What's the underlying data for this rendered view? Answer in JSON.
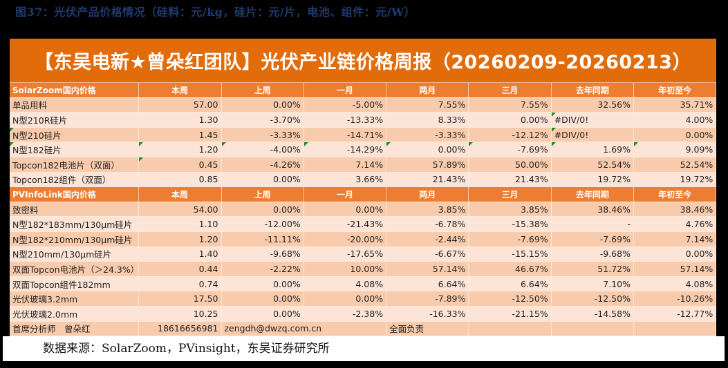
{
  "caption": "图37：光伏产品价格情况（硅料：元/kg，硅片：元/片，电池、组件：元/W）",
  "banner": "【东吴电新★曾朵红团队】光伏产业链价格周报（20260209-20260213）",
  "columns": [
    "本周",
    "上周",
    "一月",
    "两月",
    "三月",
    "去年同期",
    "年初至今"
  ],
  "sections": [
    {
      "title": "SolarZoom国内价格",
      "rows": [
        {
          "name": "单品用料",
          "values": [
            "57.00",
            "0.00%",
            "-5.00%",
            "7.55%",
            "7.55%",
            "32.56%",
            "35.71%"
          ],
          "flags": []
        },
        {
          "name": "N型210R硅片",
          "values": [
            "1.30",
            "-3.70%",
            "-13.33%",
            "8.33%",
            "0.00%",
            "#DIV/0!",
            "4.00%"
          ],
          "flags": [
            6
          ]
        },
        {
          "name": "N型210硅片",
          "values": [
            "1.45",
            "-3.33%",
            "-14.71%",
            "-3.33%",
            "-12.12%",
            "#DIV/0!",
            "0.00%"
          ],
          "flags": [
            0,
            6
          ]
        },
        {
          "name": "N型182硅片",
          "values": [
            "1.20",
            "-4.00%",
            "-14.29%",
            "0.00%",
            "-7.69%",
            "1.69%",
            "9.09%"
          ],
          "flags": [
            0,
            1,
            2,
            3,
            4,
            5,
            6,
            7
          ]
        },
        {
          "name": "Topcon182电池片（双面）",
          "values": [
            "0.45",
            "-4.26%",
            "7.14%",
            "57.89%",
            "50.00%",
            "52.54%",
            "52.54%"
          ],
          "flags": [
            1
          ]
        },
        {
          "name": "Topcon182组件（双面）",
          "values": [
            "0.85",
            "0.00%",
            "3.66%",
            "21.43%",
            "21.43%",
            "19.72%",
            "19.72%"
          ],
          "flags": []
        }
      ]
    },
    {
      "title": "PVInfoLink国内价格",
      "rows": [
        {
          "name": "致密料",
          "values": [
            "54.00",
            "0.00%",
            "0.00%",
            "3.85%",
            "3.85%",
            "38.46%",
            "38.46%"
          ],
          "flags": []
        },
        {
          "name": "N型182*183mm/130μm硅片",
          "values": [
            "1.10",
            "-12.00%",
            "-21.43%",
            "-6.78%",
            "-15.38%",
            "-",
            "4.76%"
          ],
          "flags": []
        },
        {
          "name": "N型182*210mm/130μm硅片",
          "values": [
            "1.20",
            "-11.11%",
            "-20.00%",
            "-2.44%",
            "-7.69%",
            "-7.69%",
            "7.14%"
          ],
          "flags": []
        },
        {
          "name": "N型210mm/130μm硅片",
          "values": [
            "1.40",
            "-9.68%",
            "-17.65%",
            "-6.67%",
            "-15.15%",
            "-9.68%",
            "0.00%"
          ],
          "flags": []
        },
        {
          "name": "双面Topcon电池片（＞24.3%）",
          "values": [
            "0.44",
            "-2.22%",
            "10.00%",
            "57.14%",
            "46.67%",
            "51.72%",
            "57.14%"
          ],
          "flags": []
        },
        {
          "name": "双面Topcon组件182mm",
          "values": [
            "0.74",
            "0.00%",
            "4.08%",
            "6.64%",
            "6.64%",
            "7.10%",
            "4.08%"
          ],
          "flags": []
        },
        {
          "name": "光伏玻璃3.2mm",
          "values": [
            "17.50",
            "0.00%",
            "0.00%",
            "-7.89%",
            "-12.50%",
            "-12.50%",
            "-10.26%"
          ],
          "flags": []
        },
        {
          "name": "光伏玻璃2.0mm",
          "values": [
            "10.25",
            "0.00%",
            "-2.38%",
            "-16.33%",
            "-21.15%",
            "-14.58%",
            "-12.77%"
          ],
          "flags": []
        }
      ]
    }
  ],
  "footer": {
    "analyst": "首席分析师　曾朵红",
    "phone": "18616656981",
    "email": "zengdh@dwzq.com.cn",
    "role": "全面负责"
  },
  "source": "数据来源：SolarZoom，PVinsight，东吴证券研究所",
  "colors": {
    "banner": "#e26b0a",
    "header": "#ed7d31",
    "row_odd": "#f8cbad",
    "row_even": "#fce4d6",
    "caption": "#1f3b6e"
  }
}
